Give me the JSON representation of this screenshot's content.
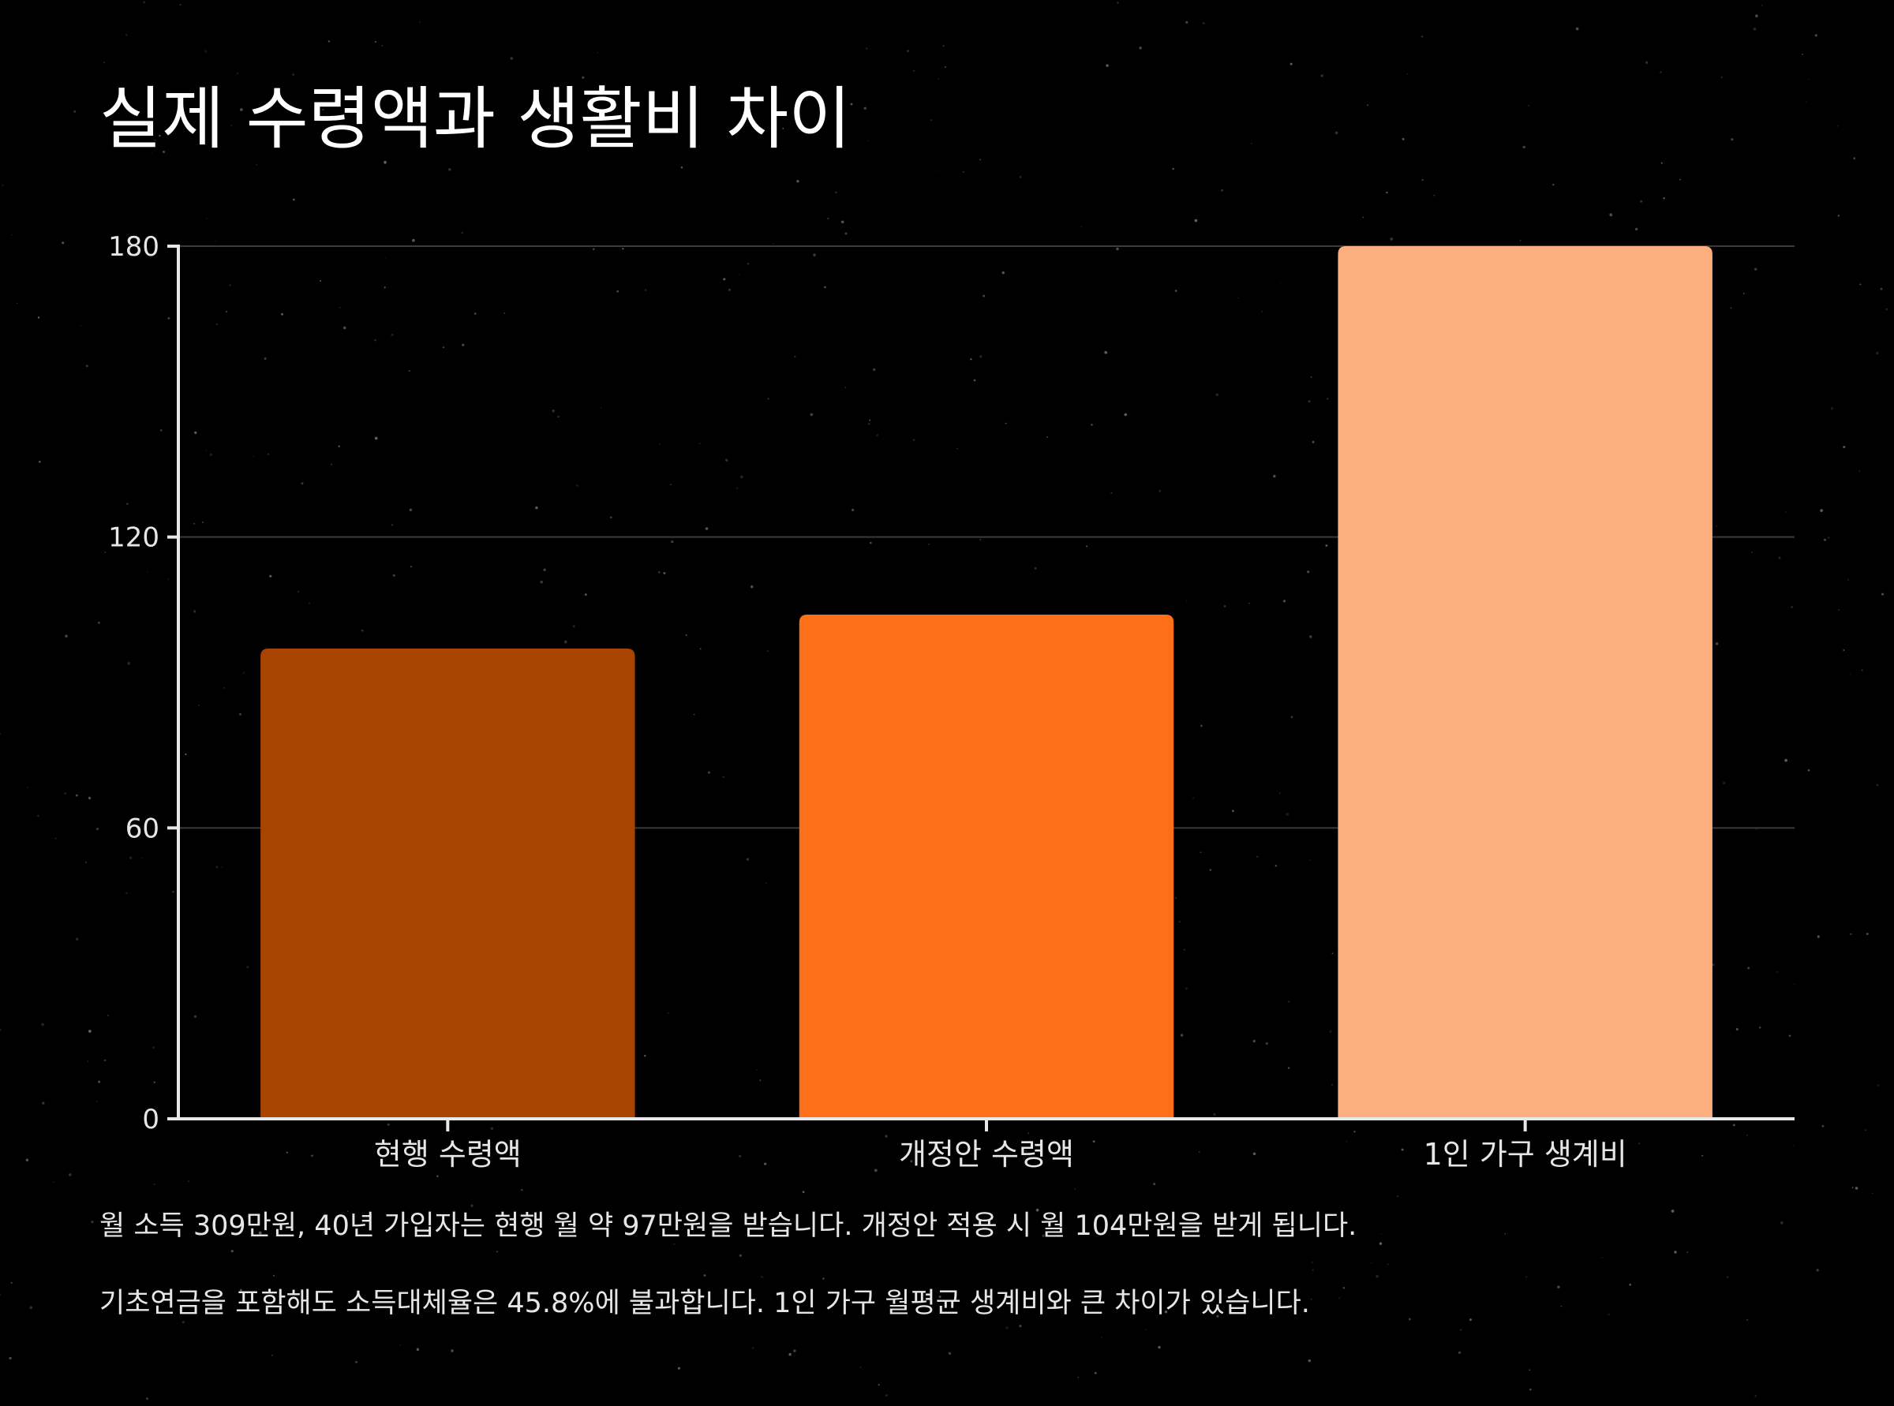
{
  "title": "실제 수령액과 생활비 차이",
  "notes": [
    "월 소득 309만원, 40년 가입자는 현행 월 약 97만원을 받습니다. 개정안 적용 시 월 104만원을 받게 됩니다.",
    "기초연금을 포함해도 소득대체율은 45.8%에 불과합니다. 1인 가구 월평균 생계비와 큰 차이가 있습니다."
  ],
  "colors": {
    "background": "#000000",
    "axis": "#e8e8e8",
    "grid": "#3a3a3a",
    "tick_text": "#e6e6e6",
    "bars": [
      "#a84300",
      "#fd7019",
      "#fdae7e"
    ]
  },
  "chart_data": {
    "type": "bar",
    "title": "실제 수령액과 생활비 차이",
    "categories": [
      "현행 수령액",
      "개정안 수령액",
      "1인 가구 생계비"
    ],
    "values": [
      97,
      104,
      180
    ],
    "xlabel": "",
    "ylabel": "",
    "ylim": [
      0,
      180
    ],
    "yticks": [
      0,
      60,
      120,
      180
    ],
    "grid": true,
    "legend": "none"
  }
}
